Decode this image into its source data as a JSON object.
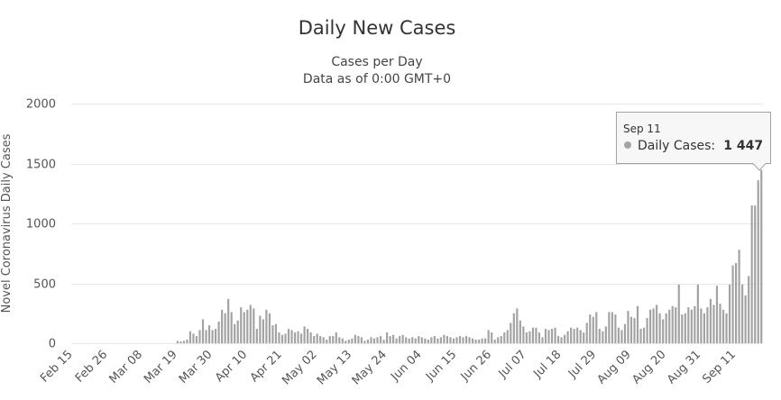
{
  "chart_data": {
    "type": "bar",
    "title": "Daily New Cases",
    "subtitle_lines": [
      "Cases per Day",
      "Data as of 0:00 GMT+0"
    ],
    "ylabel": "Novel Coronavirus Daily Cases",
    "xlabel": "",
    "ylim": [
      0,
      2000
    ],
    "yticks": [
      0,
      500,
      1000,
      1500,
      2000
    ],
    "ytick_labels": [
      "0",
      "500",
      "1000",
      "1500",
      "2000"
    ],
    "xticks": [
      "Feb 15",
      "Feb 26",
      "Mar 08",
      "Mar 19",
      "Mar 30",
      "Apr 10",
      "Apr 21",
      "May 02",
      "May 13",
      "May 24",
      "Jun 04",
      "Jun 15",
      "Jun 26",
      "Jul 07",
      "Jul 18",
      "Jul 29",
      "Aug 09",
      "Aug 20",
      "Aug 31",
      "Sep 11"
    ],
    "grid": true,
    "legend": "none",
    "bar_color": "#a3a3a3",
    "series": [
      {
        "x_start": "Feb 15",
        "x_end": "Sep 11",
        "values": [
          0,
          0,
          0,
          0,
          0,
          0,
          0,
          0,
          0,
          0,
          0,
          0,
          0,
          0,
          0,
          0,
          0,
          0,
          0,
          0,
          0,
          0,
          0,
          0,
          0,
          0,
          0,
          0,
          0,
          0,
          0,
          0,
          0,
          20,
          15,
          20,
          30,
          100,
          80,
          60,
          110,
          200,
          110,
          150,
          110,
          120,
          180,
          280,
          250,
          370,
          260,
          160,
          190,
          300,
          260,
          280,
          320,
          290,
          120,
          230,
          200,
          280,
          250,
          150,
          160,
          90,
          70,
          80,
          120,
          110,
          90,
          100,
          80,
          140,
          120,
          90,
          60,
          80,
          60,
          50,
          30,
          60,
          60,
          90,
          50,
          40,
          20,
          30,
          40,
          70,
          60,
          50,
          20,
          30,
          50,
          40,
          50,
          60,
          30,
          90,
          60,
          70,
          40,
          60,
          70,
          50,
          40,
          50,
          40,
          60,
          50,
          40,
          30,
          50,
          60,
          40,
          50,
          70,
          60,
          50,
          40,
          50,
          60,
          50,
          60,
          50,
          40,
          30,
          30,
          40,
          40,
          110,
          90,
          30,
          50,
          60,
          90,
          110,
          170,
          250,
          290,
          190,
          140,
          90,
          100,
          130,
          130,
          90,
          50,
          120,
          110,
          120,
          130,
          60,
          50,
          70,
          100,
          130,
          120,
          130,
          110,
          90,
          170,
          240,
          220,
          260,
          120,
          100,
          140,
          260,
          260,
          240,
          130,
          110,
          160,
          270,
          220,
          210,
          310,
          120,
          130,
          210,
          280,
          290,
          320,
          250,
          200,
          250,
          280,
          310,
          300,
          490,
          240,
          250,
          300,
          280,
          310,
          490,
          290,
          250,
          300,
          370,
          320,
          480,
          330,
          280,
          250,
          490,
          650,
          670,
          780,
          490,
          400,
          560,
          1150,
          1150,
          1360,
          1447
        ]
      }
    ],
    "tooltip": {
      "date": "Sep 11",
      "label": "Daily Cases:",
      "value": "1 447",
      "value_num": 1447
    }
  }
}
